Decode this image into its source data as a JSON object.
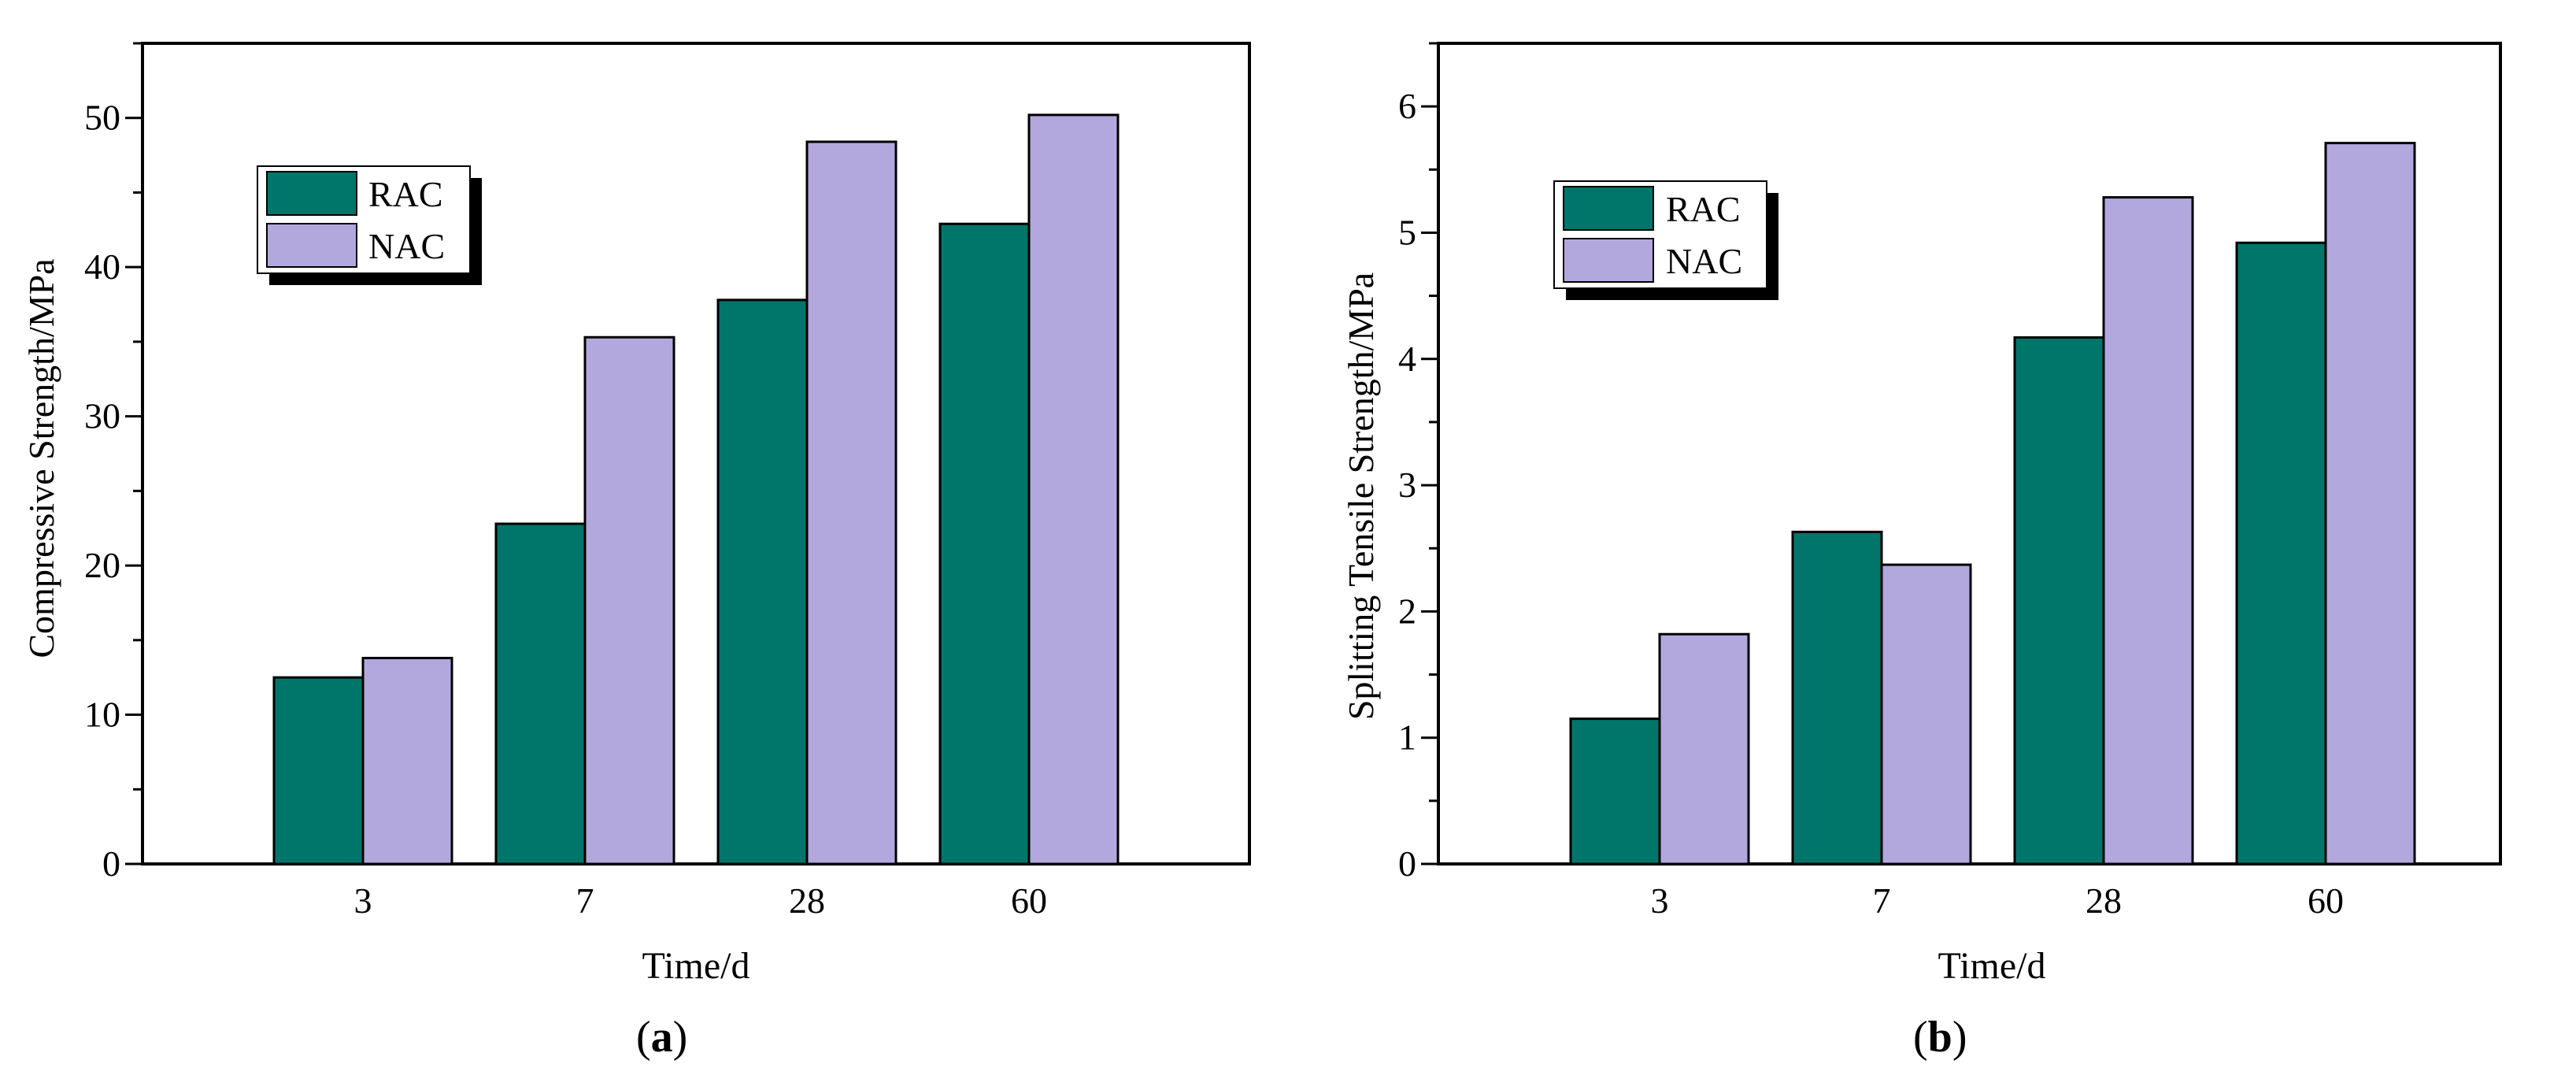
{
  "colors": {
    "rac": "#00756A",
    "nac": "#B2A8DE",
    "axis": "#000000",
    "background": "#ffffff"
  },
  "chart_data": [
    {
      "type": "bar",
      "caption": "a",
      "categories": [
        "3",
        "7",
        "28",
        "60"
      ],
      "series": [
        {
          "name": "RAC",
          "values": [
            12.5,
            22.8,
            37.8,
            42.9
          ]
        },
        {
          "name": "NAC",
          "values": [
            13.8,
            35.3,
            48.4,
            50.2
          ]
        }
      ],
      "xlabel": "Time/d",
      "ylabel": "Compressive Strength/MPa",
      "ylim": [
        0,
        55
      ],
      "yticks": [
        0,
        10,
        20,
        30,
        40,
        50
      ],
      "yminor_step": 5,
      "legend": [
        "RAC",
        "NAC"
      ],
      "legend_position": "top-left"
    },
    {
      "type": "bar",
      "caption": "b",
      "categories": [
        "3",
        "7",
        "28",
        "60"
      ],
      "series": [
        {
          "name": "RAC",
          "values": [
            1.15,
            2.63,
            4.17,
            4.92
          ]
        },
        {
          "name": "NAC",
          "values": [
            1.82,
            2.37,
            5.28,
            5.71
          ]
        }
      ],
      "xlabel": "Time/d",
      "ylabel": "Splitting Tensile Strength/MPa",
      "ylim": [
        0,
        6.5
      ],
      "yticks": [
        0,
        1,
        2,
        3,
        4,
        5,
        6
      ],
      "yminor_step": 0.5,
      "legend": [
        "RAC",
        "NAC"
      ],
      "legend_position": "top-left"
    }
  ]
}
